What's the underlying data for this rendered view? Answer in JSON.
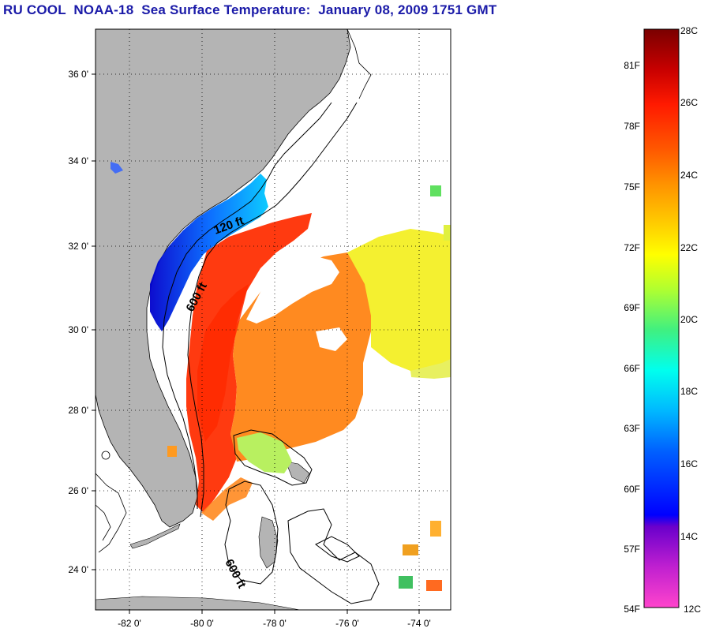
{
  "title": "RU COOL  NOAA-18  Sea Surface Temperature:  January 08, 2009 1751 GMT",
  "map": {
    "lat_labels": [
      "36 0'",
      "34 0'",
      "32 0'",
      "30 0'",
      "28 0'",
      "26 0'",
      "24 0'"
    ],
    "lon_labels": [
      "-82 0'",
      "-80 0'",
      "-78 0'",
      "-76 0'",
      "-74 0'"
    ],
    "contour_labels": [
      "120 ft",
      "600 ft",
      "600 ft"
    ]
  },
  "colorbar": {
    "fahrenheit": [
      "81F",
      "78F",
      "75F",
      "72F",
      "69F",
      "66F",
      "63F",
      "60F",
      "57F",
      "54F"
    ],
    "celsius": [
      "28C",
      "26C",
      "24C",
      "22C",
      "20C",
      "18C",
      "16C",
      "14C",
      "12C"
    ],
    "colors": [
      "#800000",
      "#ff0000",
      "#ff8c00",
      "#ffff00",
      "#66ff33",
      "#00ffff",
      "#0080ff",
      "#0000ff",
      "#9900cc",
      "#ff33cc"
    ]
  }
}
